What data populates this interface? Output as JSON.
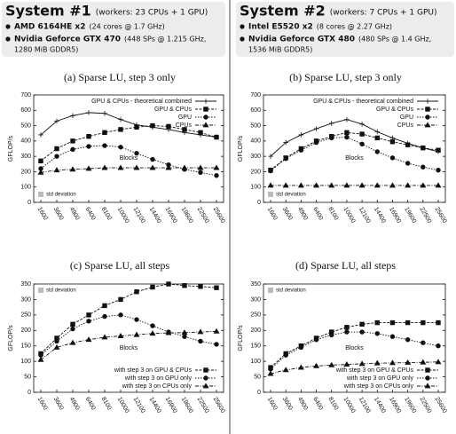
{
  "systems": [
    {
      "title": "System #1",
      "workers": "(workers: 23 CPUs + 1 GPU)",
      "items": [
        {
          "name": "AMD 6164HE x2",
          "detail": "(24 cores @ 1.7 GHz)"
        },
        {
          "name": "Nvidia Geforce GTX 470",
          "detail": "(448 SPs @ 1.215 GHz,",
          "detail2": "1280 MiB GDDR5)"
        }
      ]
    },
    {
      "title": "System #2",
      "workers": "(workers: 7 CPUs + 1 GPU)",
      "items": [
        {
          "name": "Intel E5520 x2",
          "detail": "(8 cores @ 2.27 GHz)"
        },
        {
          "name": "Nvidia Geforce GTX 480",
          "detail": "(480 SPs @ 1.4 GHz,",
          "detail2": "1536 MiB GDDR5)"
        }
      ]
    }
  ],
  "chart_data": [
    {
      "type": "line",
      "title": "(a) Sparse LU, step 3 only",
      "x_label": "Blocks",
      "y_label": "GFLOP/s",
      "categories": [
        "1600",
        "3600",
        "4900",
        "6400",
        "8100",
        "10000",
        "12100",
        "14400",
        "16900",
        "19600",
        "22500",
        "25600"
      ],
      "ylim": [
        0,
        700
      ],
      "yticks": [
        0,
        100,
        200,
        300,
        400,
        500,
        600,
        700
      ],
      "legend": "upper right",
      "annotation": "std deviation",
      "series": [
        {
          "name": "GPU & CPUs - theoretical combined",
          "color": "#111",
          "marker": "plus",
          "values": [
            440,
            530,
            565,
            585,
            580,
            540,
            505,
            490,
            475,
            455,
            440,
            425
          ]
        },
        {
          "name": "GPU & CPUs",
          "color": "#111",
          "marker": "square",
          "values": [
            270,
            350,
            400,
            430,
            455,
            475,
            490,
            500,
            495,
            475,
            455,
            425
          ]
        },
        {
          "name": "GPU",
          "color": "#111",
          "marker": "circle",
          "values": [
            220,
            300,
            345,
            365,
            370,
            360,
            320,
            280,
            245,
            215,
            195,
            175
          ]
        },
        {
          "name": "CPUs",
          "color": "#111",
          "marker": "triangle",
          "values": [
            195,
            210,
            215,
            220,
            225,
            225,
            225,
            225,
            225,
            225,
            225,
            225
          ]
        }
      ]
    },
    {
      "type": "line",
      "title": "(b) Sparse LU, step 3 only",
      "x_label": "Blocks",
      "y_label": "GFLOP/s",
      "categories": [
        "1600",
        "3600",
        "4900",
        "6400",
        "8100",
        "10000",
        "12100",
        "14400",
        "16900",
        "19600",
        "22500",
        "25600"
      ],
      "ylim": [
        0,
        700
      ],
      "yticks": [
        0,
        100,
        200,
        300,
        400,
        500,
        600,
        700
      ],
      "legend": "upper right",
      "annotation": "std deviation",
      "series": [
        {
          "name": "GPU & CPUs - theoretical combined",
          "color": "#111",
          "marker": "plus",
          "values": [
            300,
            390,
            440,
            480,
            515,
            540,
            510,
            460,
            420,
            385,
            355,
            330
          ]
        },
        {
          "name": "GPU & CPUs",
          "color": "#111",
          "marker": "square",
          "values": [
            210,
            290,
            350,
            400,
            430,
            455,
            445,
            420,
            395,
            375,
            355,
            340
          ]
        },
        {
          "name": "GPU",
          "color": "#111",
          "marker": "circle",
          "values": [
            205,
            285,
            340,
            390,
            420,
            425,
            380,
            330,
            290,
            255,
            230,
            210
          ]
        },
        {
          "name": "CPUs",
          "color": "#111",
          "marker": "triangle",
          "values": [
            110,
            110,
            110,
            110,
            110,
            110,
            110,
            110,
            110,
            110,
            110,
            110
          ]
        }
      ]
    },
    {
      "type": "line",
      "title": "(c) Sparse LU, all steps",
      "x_label": "Blocks",
      "y_label": "GFLOP/s",
      "categories": [
        "1600",
        "3600",
        "4900",
        "6400",
        "8100",
        "10000",
        "12100",
        "14400",
        "16900",
        "19600",
        "22500",
        "25600"
      ],
      "ylim": [
        0,
        350
      ],
      "yticks": [
        0,
        50,
        100,
        150,
        200,
        250,
        300,
        350
      ],
      "legend": "lower right",
      "annotation": "std deviation",
      "series": [
        {
          "name": "with step 3 on GPU & CPUs",
          "color": "#111",
          "marker": "square",
          "values": [
            125,
            175,
            220,
            250,
            280,
            300,
            325,
            340,
            350,
            345,
            342,
            338
          ]
        },
        {
          "name": "with step 3 on GPU only",
          "color": "#111",
          "marker": "circle",
          "values": [
            120,
            165,
            205,
            230,
            245,
            250,
            235,
            215,
            195,
            180,
            165,
            155
          ]
        },
        {
          "name": "with step 3 on CPUs only",
          "color": "#111",
          "marker": "triangle",
          "values": [
            105,
            145,
            160,
            170,
            178,
            182,
            186,
            190,
            192,
            193,
            195,
            197
          ]
        }
      ]
    },
    {
      "type": "line",
      "title": "(d) Sparse LU, all steps",
      "x_label": "Blocks",
      "y_label": "GFLOP/s",
      "categories": [
        "1600",
        "3600",
        "4900",
        "6400",
        "8100",
        "10000",
        "12100",
        "14400",
        "16900",
        "19600",
        "22500",
        "25600"
      ],
      "ylim": [
        0,
        350
      ],
      "yticks": [
        0,
        50,
        100,
        150,
        200,
        250,
        300,
        350
      ],
      "legend": "lower right",
      "annotation": "std deviation",
      "series": [
        {
          "name": "with step 3 on GPU & CPUs",
          "color": "#111",
          "marker": "square",
          "values": [
            80,
            125,
            150,
            175,
            195,
            210,
            220,
            225,
            225,
            225,
            225,
            225
          ]
        },
        {
          "name": "with step 3 on GPU only",
          "color": "#111",
          "marker": "circle",
          "values": [
            75,
            120,
            145,
            170,
            185,
            195,
            195,
            190,
            180,
            170,
            160,
            150
          ]
        },
        {
          "name": "with step 3 on CPUs only",
          "color": "#111",
          "marker": "triangle",
          "values": [
            60,
            72,
            80,
            85,
            88,
            90,
            92,
            94,
            95,
            96,
            97,
            98
          ]
        }
      ]
    }
  ]
}
